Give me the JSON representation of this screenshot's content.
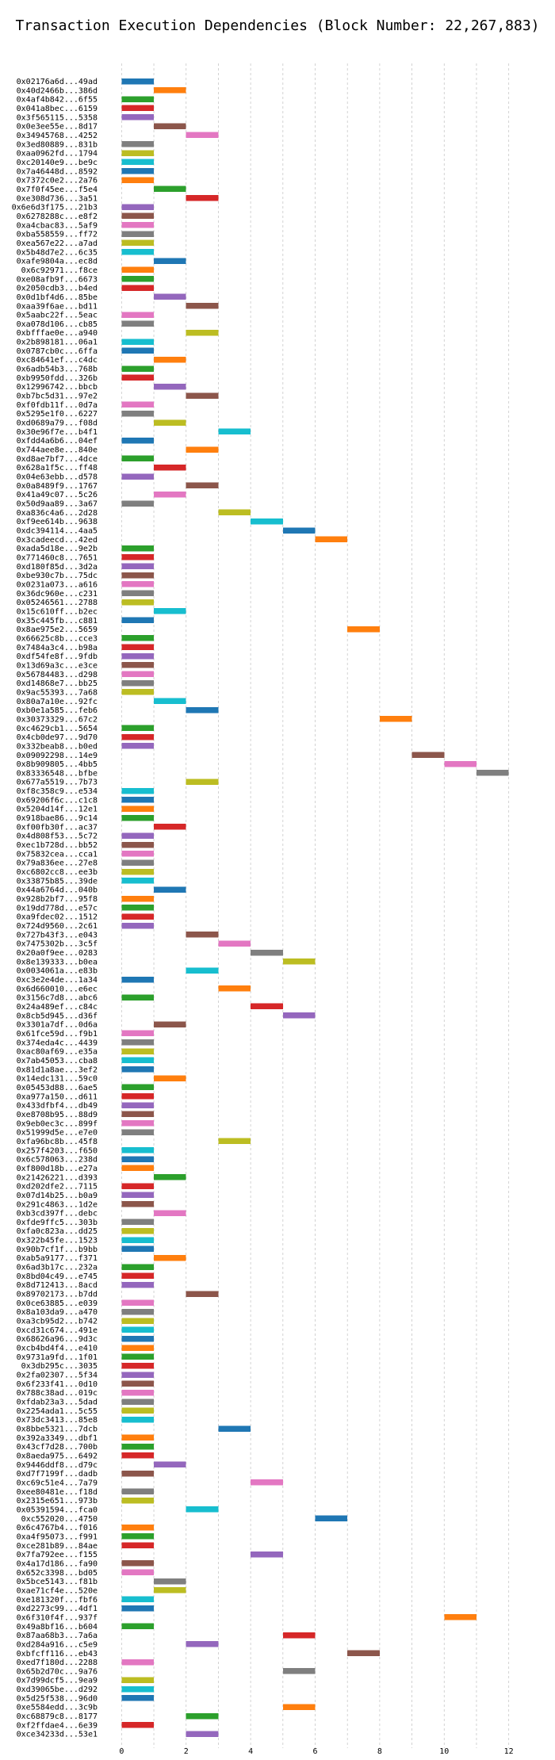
{
  "chart_data": {
    "type": "bar",
    "orientation": "horizontal",
    "title": "Transaction Execution Dependencies (Block Number: 22,267,883)",
    "xlabel": "",
    "ylabel": "",
    "xlim": [
      -0.5,
      12.5
    ],
    "xticks": [
      0,
      2,
      4,
      6,
      8,
      10,
      12
    ],
    "grid": true,
    "colors": [
      "#1f77b4",
      "#ff7f0e",
      "#2ca02c",
      "#d62728",
      "#9467bd",
      "#8c564b",
      "#e377c2",
      "#7f7f7f",
      "#bcbd22",
      "#17becf"
    ],
    "transactions": [
      {
        "label": "0x02176a6d...49ad",
        "start": 0,
        "end": 1
      },
      {
        "label": "0x40d2466b...386d",
        "start": 1,
        "end": 2
      },
      {
        "label": "0x4af4b842...6f55",
        "start": 0,
        "end": 1
      },
      {
        "label": "0x041a8bec...6159",
        "start": 0,
        "end": 1
      },
      {
        "label": "0x3f565115...5358",
        "start": 0,
        "end": 1
      },
      {
        "label": "0x0e3ee55e...8d17",
        "start": 1,
        "end": 2
      },
      {
        "label": "0x34945768...4252",
        "start": 2,
        "end": 3
      },
      {
        "label": "0x3ed80889...831b",
        "start": 0,
        "end": 1
      },
      {
        "label": "0xaa0962fd...1794",
        "start": 0,
        "end": 1
      },
      {
        "label": "0xc20140e9...be9c",
        "start": 0,
        "end": 1
      },
      {
        "label": "0x7a46448d...8592",
        "start": 0,
        "end": 1
      },
      {
        "label": "0x7372c0e2...2a76",
        "start": 0,
        "end": 1
      },
      {
        "label": "0x7f0f45ee...f5e4",
        "start": 1,
        "end": 2
      },
      {
        "label": "0xe308d736...3a51",
        "start": 2,
        "end": 3
      },
      {
        "label": "0x6e6d3f175...21b3",
        "start": 0,
        "end": 1
      },
      {
        "label": "0x6278288c...e8f2",
        "start": 0,
        "end": 1
      },
      {
        "label": "0xa4cbac83...5af9",
        "start": 0,
        "end": 1
      },
      {
        "label": "0xba558559...ff72",
        "start": 0,
        "end": 1
      },
      {
        "label": "0xea567e22...a7ad",
        "start": 0,
        "end": 1
      },
      {
        "label": "0x5b48d7e2...6c35",
        "start": 0,
        "end": 1
      },
      {
        "label": "0xafe9804a...ec8d",
        "start": 1,
        "end": 2
      },
      {
        "label": "0x6c92971...f8ce",
        "start": 0,
        "end": 1
      },
      {
        "label": "0xe08afb9f...6673",
        "start": 0,
        "end": 1
      },
      {
        "label": "0x2050cdb3...b4ed",
        "start": 0,
        "end": 1
      },
      {
        "label": "0x0d1bf4d6...85be",
        "start": 1,
        "end": 2
      },
      {
        "label": "0xaa39f6ae...bd11",
        "start": 2,
        "end": 3
      },
      {
        "label": "0x5aabc22f...5eac",
        "start": 0,
        "end": 1
      },
      {
        "label": "0xa078d106...cb85",
        "start": 0,
        "end": 1
      },
      {
        "label": "0xbfffae0e...a940",
        "start": 2,
        "end": 3
      },
      {
        "label": "0x2b898181...06a1",
        "start": 0,
        "end": 1
      },
      {
        "label": "0x0787cb0c...6ffa",
        "start": 0,
        "end": 1
      },
      {
        "label": "0xc84641ef...c4dc",
        "start": 1,
        "end": 2
      },
      {
        "label": "0x6adb54b3...768b",
        "start": 0,
        "end": 1
      },
      {
        "label": "0xb9950fdd...326b",
        "start": 0,
        "end": 1
      },
      {
        "label": "0x12996742...bbcb",
        "start": 1,
        "end": 2
      },
      {
        "label": "0xb7bc5d31...97e2",
        "start": 2,
        "end": 3
      },
      {
        "label": "0xf0fdb11f...0d7a",
        "start": 0,
        "end": 1
      },
      {
        "label": "0x5295e1f0...6227",
        "start": 0,
        "end": 1
      },
      {
        "label": "0xd0689a79...f08d",
        "start": 1,
        "end": 2
      },
      {
        "label": "0x30e96f7e...b4f1",
        "start": 3,
        "end": 4
      },
      {
        "label": "0xfdd4a6b6...04ef",
        "start": 0,
        "end": 1
      },
      {
        "label": "0x744aee8e...840e",
        "start": 2,
        "end": 3
      },
      {
        "label": "0xd8ae7bf7...4dce",
        "start": 0,
        "end": 1
      },
      {
        "label": "0x628a1f5c...ff48",
        "start": 1,
        "end": 2
      },
      {
        "label": "0x04e63ebb...d578",
        "start": 0,
        "end": 1
      },
      {
        "label": "0x0a8489f9...1767",
        "start": 2,
        "end": 3
      },
      {
        "label": "0x41a49c07...5c26",
        "start": 1,
        "end": 2
      },
      {
        "label": "0x50d9aa89...3a67",
        "start": 0,
        "end": 1
      },
      {
        "label": "0xa836c4a6...2d28",
        "start": 3,
        "end": 4
      },
      {
        "label": "0xf9ee614b...9638",
        "start": 4,
        "end": 5
      },
      {
        "label": "0xdc394114...4aa5",
        "start": 5,
        "end": 6
      },
      {
        "label": "0x3cadeecd...42ed",
        "start": 6,
        "end": 7
      },
      {
        "label": "0xada5d18e...9e2b",
        "start": 0,
        "end": 1
      },
      {
        "label": "0x771460c8...7651",
        "start": 0,
        "end": 1
      },
      {
        "label": "0xd180f85d...3d2a",
        "start": 0,
        "end": 1
      },
      {
        "label": "0xbe930c7b...75dc",
        "start": 0,
        "end": 1
      },
      {
        "label": "0x0231a073...a616",
        "start": 0,
        "end": 1
      },
      {
        "label": "0x36dc960e...c231",
        "start": 0,
        "end": 1
      },
      {
        "label": "0x05246561...2788",
        "start": 0,
        "end": 1
      },
      {
        "label": "0x15c610ff...b2ec",
        "start": 1,
        "end": 2
      },
      {
        "label": "0x35c445fb...c881",
        "start": 0,
        "end": 1
      },
      {
        "label": "0x8ae975e2...5659",
        "start": 7,
        "end": 8
      },
      {
        "label": "0x66625c8b...cce3",
        "start": 0,
        "end": 1
      },
      {
        "label": "0x7484a3c4...b98a",
        "start": 0,
        "end": 1
      },
      {
        "label": "0xdf54fe8f...9fdb",
        "start": 0,
        "end": 1
      },
      {
        "label": "0x13d69a3c...e3ce",
        "start": 0,
        "end": 1
      },
      {
        "label": "0x56784483...d298",
        "start": 0,
        "end": 1
      },
      {
        "label": "0xd14868e7...bb25",
        "start": 0,
        "end": 1
      },
      {
        "label": "0x9ac55393...7a68",
        "start": 0,
        "end": 1
      },
      {
        "label": "0x80a7a10e...92fc",
        "start": 1,
        "end": 2
      },
      {
        "label": "0xb0e1a585...feb6",
        "start": 2,
        "end": 3
      },
      {
        "label": "0x30373329...67c2",
        "start": 8,
        "end": 9
      },
      {
        "label": "0xc4629cb1...5654",
        "start": 0,
        "end": 1
      },
      {
        "label": "0x4cb0de97...9d70",
        "start": 0,
        "end": 1
      },
      {
        "label": "0x332beab8...b0ed",
        "start": 0,
        "end": 1
      },
      {
        "label": "0x09092298...14e9",
        "start": 9,
        "end": 10
      },
      {
        "label": "0x8b909805...4bb5",
        "start": 10,
        "end": 11
      },
      {
        "label": "0x83336548...bfbe",
        "start": 11,
        "end": 12
      },
      {
        "label": "0x677a5519...7b73",
        "start": 2,
        "end": 3
      },
      {
        "label": "0xf8c358c9...e534",
        "start": 0,
        "end": 1
      },
      {
        "label": "0x69206f6c...c1c8",
        "start": 0,
        "end": 1
      },
      {
        "label": "0x5204d14f...12e1",
        "start": 0,
        "end": 1
      },
      {
        "label": "0x918bae86...9c14",
        "start": 0,
        "end": 1
      },
      {
        "label": "0xf00fb30f...ac37",
        "start": 1,
        "end": 2
      },
      {
        "label": "0x4d808f53...5c72",
        "start": 0,
        "end": 1
      },
      {
        "label": "0xec1b728d...bb52",
        "start": 0,
        "end": 1
      },
      {
        "label": "0x75832cea...cca1",
        "start": 0,
        "end": 1
      },
      {
        "label": "0x79a836ee...27e8",
        "start": 0,
        "end": 1
      },
      {
        "label": "0xc6802cc8...ee3b",
        "start": 0,
        "end": 1
      },
      {
        "label": "0x33875b85...39de",
        "start": 0,
        "end": 1
      },
      {
        "label": "0x44a6764d...040b",
        "start": 1,
        "end": 2
      },
      {
        "label": "0x928b2bf7...95f8",
        "start": 0,
        "end": 1
      },
      {
        "label": "0x19dd778d...e57c",
        "start": 0,
        "end": 1
      },
      {
        "label": "0xa9fdec02...1512",
        "start": 0,
        "end": 1
      },
      {
        "label": "0x724d9560...2c61",
        "start": 0,
        "end": 1
      },
      {
        "label": "0x727b43f3...e043",
        "start": 2,
        "end": 3
      },
      {
        "label": "0x7475302b...3c5f",
        "start": 3,
        "end": 4
      },
      {
        "label": "0x20a0f9ee...0283",
        "start": 4,
        "end": 5
      },
      {
        "label": "0x8e139333...b0ea",
        "start": 5,
        "end": 6
      },
      {
        "label": "0x0034061a...e83b",
        "start": 2,
        "end": 3
      },
      {
        "label": "0xc3e2e4de...1a34",
        "start": 0,
        "end": 1
      },
      {
        "label": "0x6d660010...e6ec",
        "start": 3,
        "end": 4
      },
      {
        "label": "0x3156c7d8...abc6",
        "start": 0,
        "end": 1
      },
      {
        "label": "0x24a489ef...c84c",
        "start": 4,
        "end": 5
      },
      {
        "label": "0x8cb5d945...d36f",
        "start": 5,
        "end": 6
      },
      {
        "label": "0x3301a7df...0d6a",
        "start": 1,
        "end": 2
      },
      {
        "label": "0x61fce59d...f9b1",
        "start": 0,
        "end": 1
      },
      {
        "label": "0x374eda4c...4439",
        "start": 0,
        "end": 1
      },
      {
        "label": "0xac80af69...e35a",
        "start": 0,
        "end": 1
      },
      {
        "label": "0x7ab45053...cba8",
        "start": 0,
        "end": 1
      },
      {
        "label": "0x81d1a8ae...3ef2",
        "start": 0,
        "end": 1
      },
      {
        "label": "0x14edc131...59c0",
        "start": 1,
        "end": 2
      },
      {
        "label": "0x05453d88...6ae5",
        "start": 0,
        "end": 1
      },
      {
        "label": "0xa977a150...d611",
        "start": 0,
        "end": 1
      },
      {
        "label": "0x433dfbf4...db49",
        "start": 0,
        "end": 1
      },
      {
        "label": "0xe8708b95...88d9",
        "start": 0,
        "end": 1
      },
      {
        "label": "0x9eb0ec3c...899f",
        "start": 0,
        "end": 1
      },
      {
        "label": "0x51999d5e...e7e0",
        "start": 0,
        "end": 1
      },
      {
        "label": "0xfa96bc8b...45f8",
        "start": 3,
        "end": 4
      },
      {
        "label": "0x257f4203...f650",
        "start": 0,
        "end": 1
      },
      {
        "label": "0x6c578063...238d",
        "start": 0,
        "end": 1
      },
      {
        "label": "0xf800d18b...e27a",
        "start": 0,
        "end": 1
      },
      {
        "label": "0x21426221...d393",
        "start": 1,
        "end": 2
      },
      {
        "label": "0xd202dfe2...7115",
        "start": 0,
        "end": 1
      },
      {
        "label": "0x07d14b25...b0a9",
        "start": 0,
        "end": 1
      },
      {
        "label": "0x291c4863...1d2e",
        "start": 0,
        "end": 1
      },
      {
        "label": "0xb3cd397f...debc",
        "start": 1,
        "end": 2
      },
      {
        "label": "0xfde9ffc5...303b",
        "start": 0,
        "end": 1
      },
      {
        "label": "0xfa0c823a...dd25",
        "start": 0,
        "end": 1
      },
      {
        "label": "0x322b45fe...1523",
        "start": 0,
        "end": 1
      },
      {
        "label": "0x90b7cf1f...b9bb",
        "start": 0,
        "end": 1
      },
      {
        "label": "0xab5a9177...f371",
        "start": 1,
        "end": 2
      },
      {
        "label": "0x6ad3b17c...232a",
        "start": 0,
        "end": 1
      },
      {
        "label": "0x8bd04c49...e745",
        "start": 0,
        "end": 1
      },
      {
        "label": "0x8d712413...8acd",
        "start": 0,
        "end": 1
      },
      {
        "label": "0x89702173...b7dd",
        "start": 2,
        "end": 3
      },
      {
        "label": "0x0ce63885...e039",
        "start": 0,
        "end": 1
      },
      {
        "label": "0x8a103da9...a470",
        "start": 0,
        "end": 1
      },
      {
        "label": "0xa3cb95d2...b742",
        "start": 0,
        "end": 1
      },
      {
        "label": "0xcd31c674...491e",
        "start": 0,
        "end": 1
      },
      {
        "label": "0x68626a96...9d3c",
        "start": 0,
        "end": 1
      },
      {
        "label": "0xcb4bd4f4...e410",
        "start": 0,
        "end": 1
      },
      {
        "label": "0x9731a9fd...1f01",
        "start": 0,
        "end": 1
      },
      {
        "label": "0x3db295c...3035",
        "start": 0,
        "end": 1
      },
      {
        "label": "0x2fa02307...5f34",
        "start": 0,
        "end": 1
      },
      {
        "label": "0x6f233f41...0d10",
        "start": 0,
        "end": 1
      },
      {
        "label": "0x788c38ad...019c",
        "start": 0,
        "end": 1
      },
      {
        "label": "0xfdab23a3...5dad",
        "start": 0,
        "end": 1
      },
      {
        "label": "0x2254ada1...5c55",
        "start": 0,
        "end": 1
      },
      {
        "label": "0x73dc3413...85e8",
        "start": 0,
        "end": 1
      },
      {
        "label": "0x8bbe5321...7dcb",
        "start": 3,
        "end": 4
      },
      {
        "label": "0x392a3349...dbf1",
        "start": 0,
        "end": 1
      },
      {
        "label": "0x43cf7d28...700b",
        "start": 0,
        "end": 1
      },
      {
        "label": "0x8aeda975...6492",
        "start": 0,
        "end": 1
      },
      {
        "label": "0x9446ddf8...d79c",
        "start": 1,
        "end": 2
      },
      {
        "label": "0xd7f7199f...dadb",
        "start": 0,
        "end": 1
      },
      {
        "label": "0xc69c51e4...7a79",
        "start": 4,
        "end": 5
      },
      {
        "label": "0xee80481e...f18d",
        "start": 0,
        "end": 1
      },
      {
        "label": "0x2315e651...973b",
        "start": 0,
        "end": 1
      },
      {
        "label": "0x05391594...fca0",
        "start": 2,
        "end": 3
      },
      {
        "label": "0xc552020...4750",
        "start": 6,
        "end": 7
      },
      {
        "label": "0x6c4767b4...f016",
        "start": 0,
        "end": 1
      },
      {
        "label": "0xa4f95073...f991",
        "start": 0,
        "end": 1
      },
      {
        "label": "0xce281b89...84ae",
        "start": 0,
        "end": 1
      },
      {
        "label": "0x7fa792ee...f155",
        "start": 4,
        "end": 5
      },
      {
        "label": "0x4a17d186...fa90",
        "start": 0,
        "end": 1
      },
      {
        "label": "0x652c3398...bd05",
        "start": 0,
        "end": 1
      },
      {
        "label": "0x5bce5143...f81b",
        "start": 1,
        "end": 2
      },
      {
        "label": "0xae71cf4e...520e",
        "start": 1,
        "end": 2
      },
      {
        "label": "0xe181320f...fbf6",
        "start": 0,
        "end": 1
      },
      {
        "label": "0xd2273c99...4df1",
        "start": 0,
        "end": 1
      },
      {
        "label": "0x6f310f4f...937f",
        "start": 10,
        "end": 11
      },
      {
        "label": "0x49a8bf16...b604",
        "start": 0,
        "end": 1
      },
      {
        "label": "0x87aa68b3...7a6a",
        "start": 5,
        "end": 6
      },
      {
        "label": "0xd284a916...c5e9",
        "start": 2,
        "end": 3
      },
      {
        "label": "0xbfcff116...eb43",
        "start": 7,
        "end": 8
      },
      {
        "label": "0xed7f180d...2288",
        "start": 0,
        "end": 1
      },
      {
        "label": "0x65b2d70c...9a76",
        "start": 5,
        "end": 6
      },
      {
        "label": "0x7d99dcf5...9ea9",
        "start": 0,
        "end": 1
      },
      {
        "label": "0xd39065be...d292",
        "start": 0,
        "end": 1
      },
      {
        "label": "0x5d25f538...96d0",
        "start": 0,
        "end": 1
      },
      {
        "label": "0xe5584edd...3c9b",
        "start": 5,
        "end": 6
      },
      {
        "label": "0xc68879c8...8177",
        "start": 2,
        "end": 3
      },
      {
        "label": "0xf2ffdae4...6e39",
        "start": 0,
        "end": 1
      },
      {
        "label": "0xce34233d...53e1",
        "start": 2,
        "end": 3
      }
    ]
  }
}
